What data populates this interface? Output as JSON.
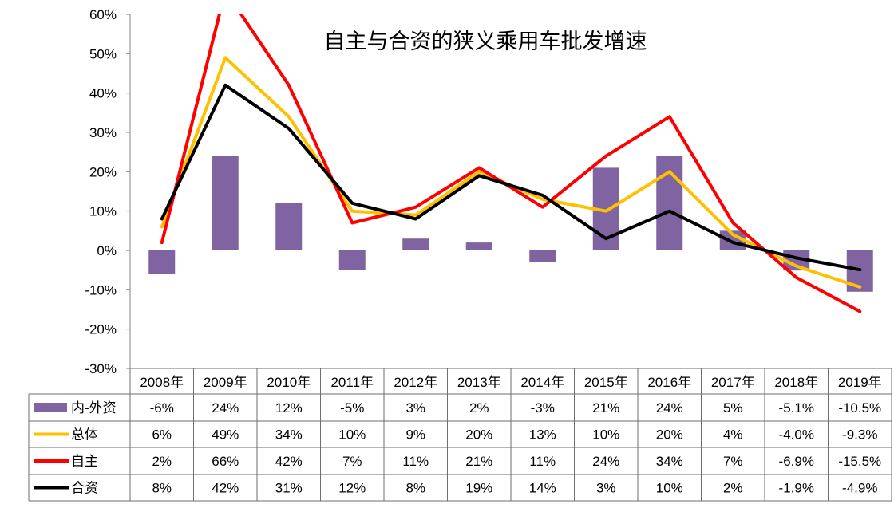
{
  "chart_data": {
    "type": "bar",
    "title": "自主与合资的狭义乘用车批发增速",
    "categories": [
      "2008年",
      "2009年",
      "2010年",
      "2011年",
      "2012年",
      "2013年",
      "2014年",
      "2015年",
      "2016年",
      "2017年",
      "2018年",
      "2019年"
    ],
    "ylim": [
      -0.3,
      0.6
    ],
    "yticks": [
      "60%",
      "50%",
      "40%",
      "30%",
      "20%",
      "10%",
      "0%",
      "-10%",
      "-20%",
      "-30%"
    ],
    "grid": false,
    "legend_placement": "data-table-left",
    "series": [
      {
        "name": "内-外资",
        "kind": "bar",
        "color": "#8064A2",
        "values": [
          -0.06,
          0.24,
          0.12,
          -0.05,
          0.03,
          0.02,
          -0.03,
          0.21,
          0.24,
          0.05,
          -0.051,
          -0.105
        ],
        "labels": [
          "-6%",
          "24%",
          "12%",
          "-5%",
          "3%",
          "2%",
          "-3%",
          "21%",
          "24%",
          "5%",
          "-5.1%",
          "-10.5%"
        ]
      },
      {
        "name": "总体",
        "kind": "line",
        "color": "#FFC000",
        "values": [
          0.06,
          0.49,
          0.34,
          0.1,
          0.09,
          0.2,
          0.13,
          0.1,
          0.2,
          0.04,
          -0.04,
          -0.093
        ],
        "labels": [
          "6%",
          "49%",
          "34%",
          "10%",
          "9%",
          "20%",
          "13%",
          "10%",
          "20%",
          "4%",
          "-4.0%",
          "-9.3%"
        ]
      },
      {
        "name": "自主",
        "kind": "line",
        "color": "#FF0000",
        "values": [
          0.02,
          0.66,
          0.42,
          0.07,
          0.11,
          0.21,
          0.11,
          0.24,
          0.34,
          0.07,
          -0.069,
          -0.155
        ],
        "labels": [
          "2%",
          "66%",
          "42%",
          "7%",
          "11%",
          "21%",
          "11%",
          "24%",
          "34%",
          "7%",
          "-6.9%",
          "-15.5%"
        ]
      },
      {
        "name": "合资",
        "kind": "line",
        "color": "#000000",
        "values": [
          0.08,
          0.42,
          0.31,
          0.12,
          0.08,
          0.19,
          0.14,
          0.03,
          0.1,
          0.02,
          -0.019,
          -0.049
        ],
        "labels": [
          "8%",
          "42%",
          "31%",
          "12%",
          "8%",
          "19%",
          "14%",
          "3%",
          "10%",
          "2%",
          "-1.9%",
          "-4.9%"
        ]
      }
    ]
  }
}
